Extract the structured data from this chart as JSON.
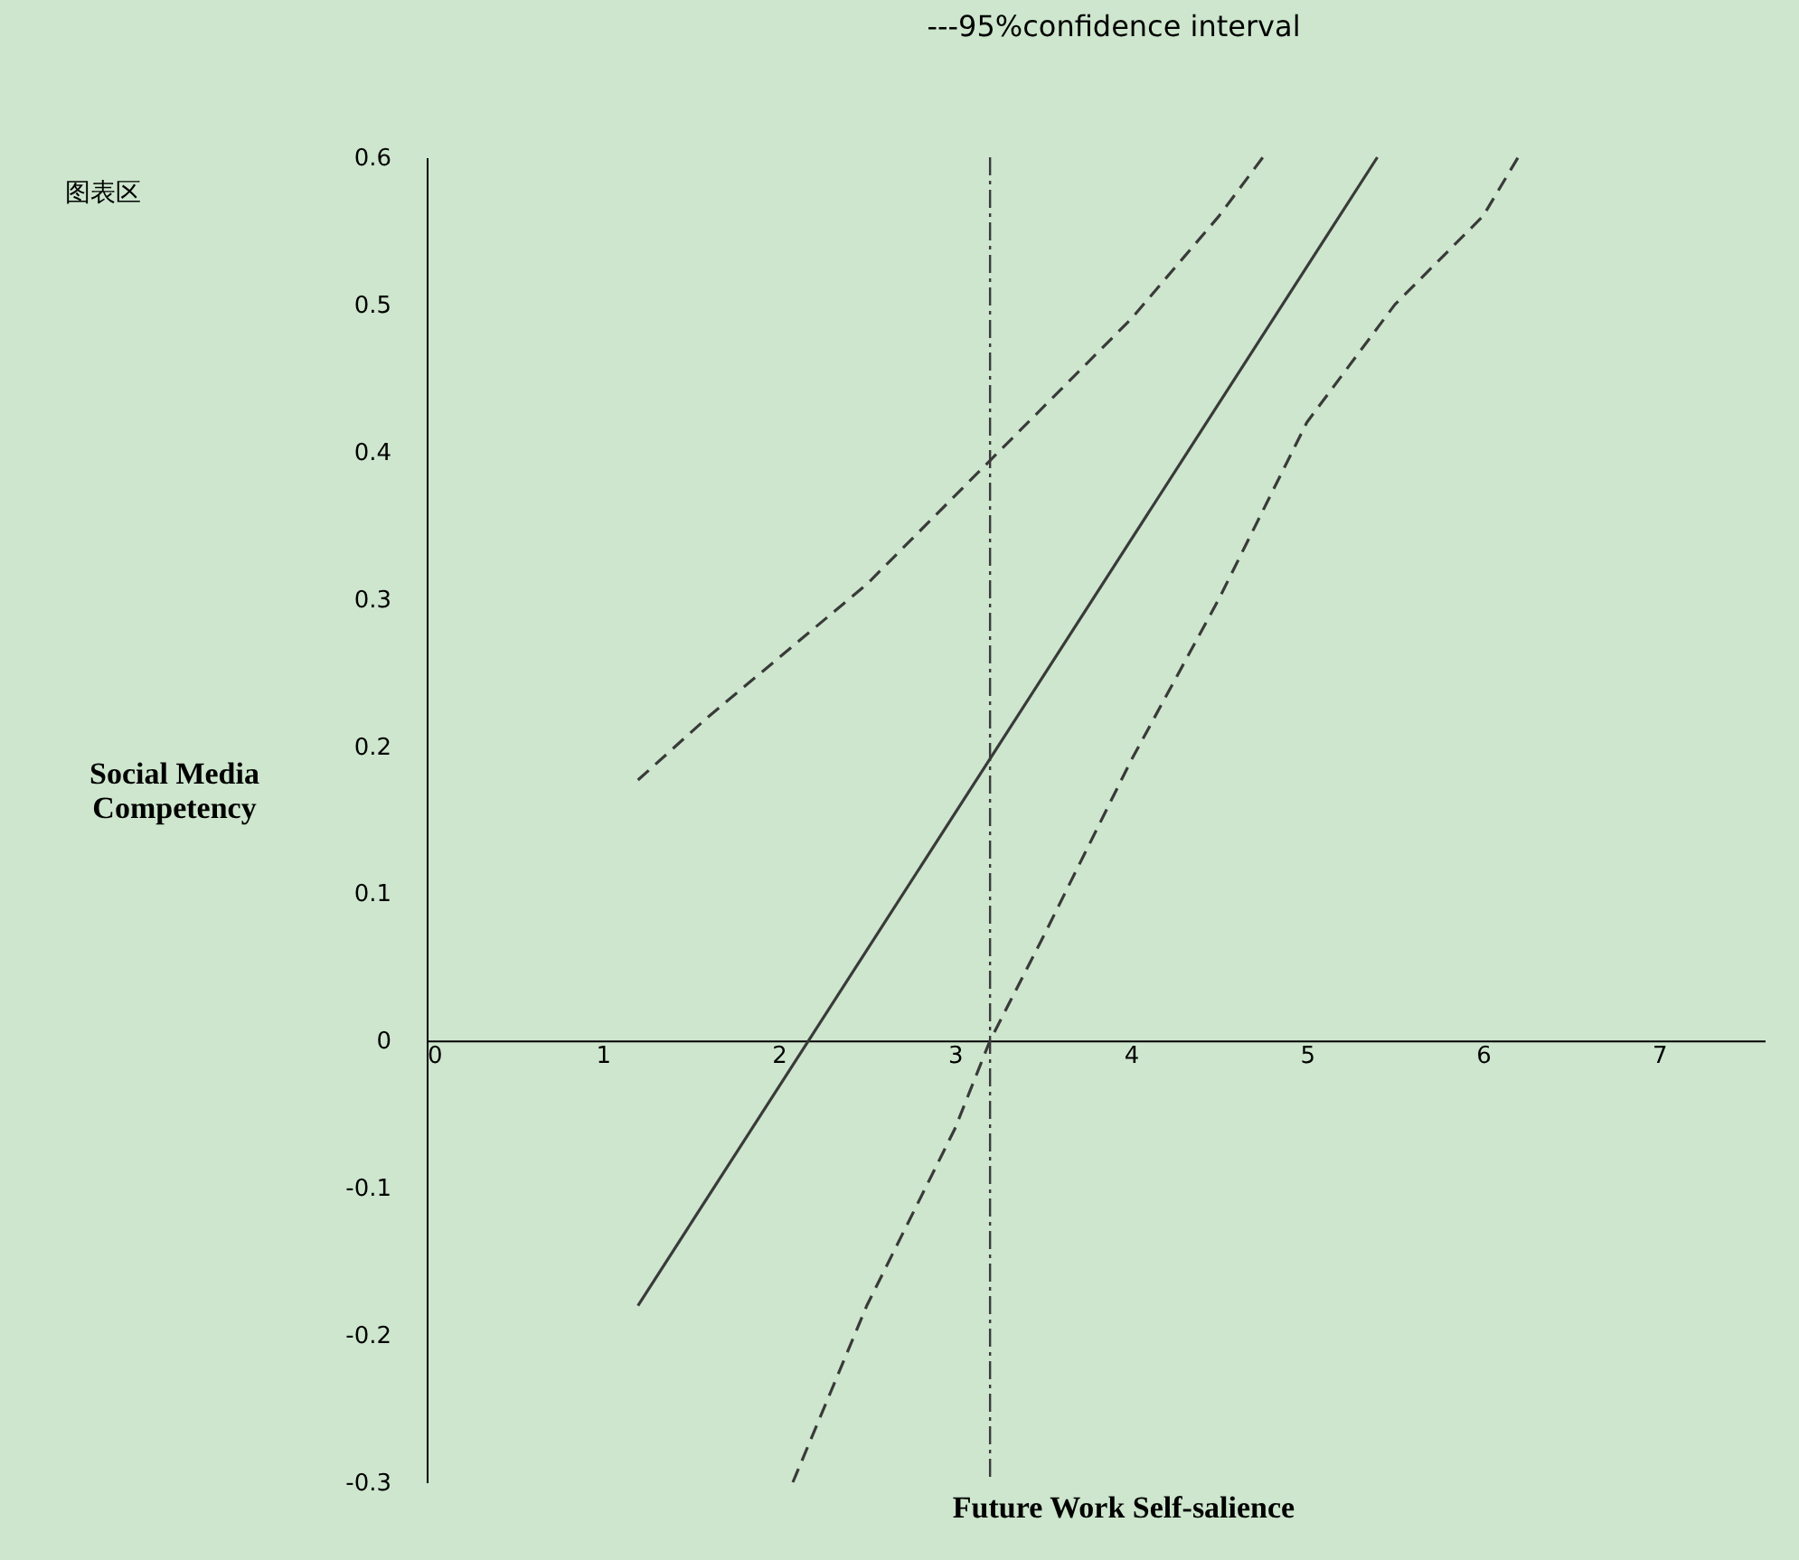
{
  "chart_data": {
    "type": "line",
    "title": "---95%confidence interval",
    "xlabel": "Future Work Self-salience",
    "ylabel": "Social Media Competency",
    "xlim": [
      0,
      7.6
    ],
    "xticks": [
      0,
      1,
      2,
      3,
      4,
      5,
      6,
      7
    ],
    "ylim": [
      -0.3,
      0.6
    ],
    "yticks": [
      -0.3,
      -0.2,
      -0.1,
      0,
      0.1,
      0.2,
      0.3,
      0.4,
      0.5,
      0.6
    ],
    "grid": false,
    "marker": "none",
    "series": [
      {
        "color": "#3a3a3a",
        "line_style": "solid",
        "x": [
          1.2,
          5.4
        ],
        "values": [
          -0.18,
          0.6
        ]
      },
      {
        "color": "#3a3a3a",
        "line_style": "dashed",
        "x": [
          1.2,
          1.6,
          2.0,
          2.5,
          3.0,
          3.5,
          4.0,
          4.5,
          4.75
        ],
        "values": [
          0.177,
          0.22,
          0.26,
          0.31,
          0.37,
          0.43,
          0.49,
          0.56,
          0.6
        ]
      },
      {
        "color": "#3a3a3a",
        "line_style": "dashed",
        "x": [
          2.08,
          2.5,
          3.0,
          3.2,
          3.5,
          4.0,
          4.5,
          5.0,
          5.5,
          6.0,
          6.2
        ],
        "values": [
          -0.3,
          -0.18,
          -0.06,
          0,
          0.07,
          0.19,
          0.3,
          0.42,
          0.5,
          0.56,
          0.6
        ]
      }
    ],
    "ref_lines": [
      {
        "axis": "x",
        "value": 3.2,
        "label": null,
        "color": "#3a3a3a",
        "line_style": "dashed"
      }
    ],
    "annotations": [
      "图表区"
    ]
  }
}
